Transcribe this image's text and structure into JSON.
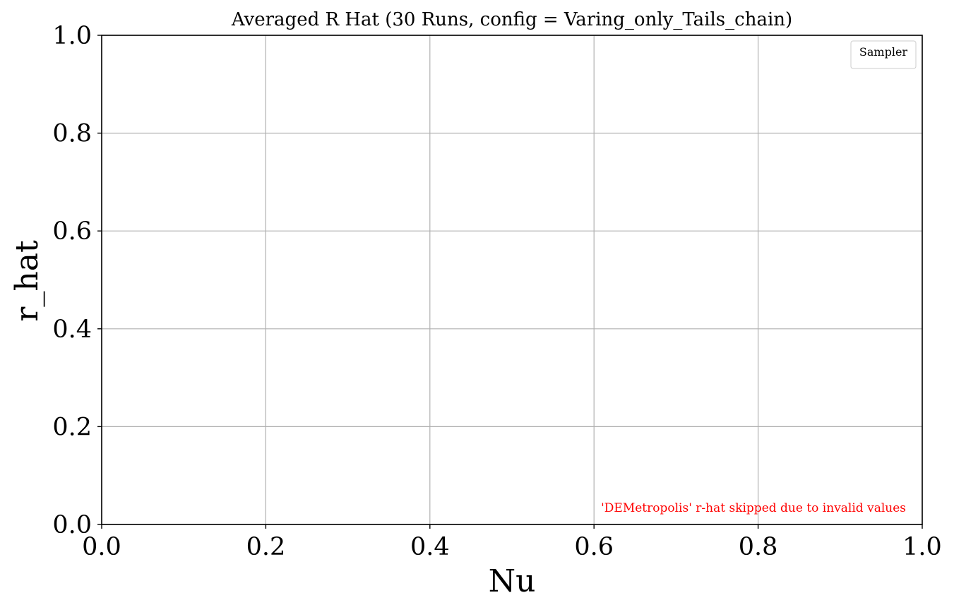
{
  "chart_data": {
    "type": "line",
    "title": "Averaged R Hat (30 Runs, config = Varing_only_Tails_chain)",
    "xlabel": "Nu",
    "ylabel": "r_hat",
    "xlim": [
      0.0,
      1.0
    ],
    "ylim": [
      0.0,
      1.0
    ],
    "x_ticks": [
      0.0,
      0.2,
      0.4,
      0.6,
      0.8,
      1.0
    ],
    "y_ticks": [
      0.0,
      0.2,
      0.4,
      0.6,
      0.8,
      1.0
    ],
    "x_tick_labels": [
      "0.0",
      "0.2",
      "0.4",
      "0.6",
      "0.8",
      "1.0"
    ],
    "y_tick_labels": [
      "0.0",
      "0.2",
      "0.4",
      "0.6",
      "0.8",
      "1.0"
    ],
    "grid": true,
    "series": [],
    "legend": {
      "title": "Sampler",
      "placement": "top-right",
      "entries": []
    },
    "annotations": [
      {
        "text": "'DEMetropolis' r-hat skipped due to invalid values",
        "placement": "bottom-right",
        "color": "#ff0000"
      }
    ]
  }
}
